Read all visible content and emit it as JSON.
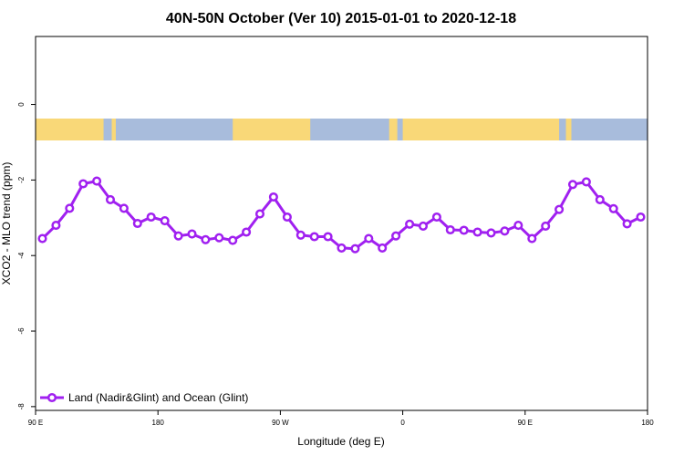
{
  "chart_data": {
    "type": "line",
    "title": "40N-50N October (Ver 10)   2015-01-01 to 2020-12-18",
    "xlabel": "Longitude (deg E)",
    "ylabel": "XCO2 - MLO trend (ppm)",
    "xlim": [
      90,
      540
    ],
    "ylim": [
      -8.1,
      1.8
    ],
    "x_ticks": [
      {
        "value": 90,
        "label": "90 E"
      },
      {
        "value": 180,
        "label": "180"
      },
      {
        "value": 270,
        "label": "90 W"
      },
      {
        "value": 360,
        "label": "0"
      },
      {
        "value": 450,
        "label": "90 E"
      },
      {
        "value": 540,
        "label": "180"
      }
    ],
    "y_ticks": [
      {
        "value": 0,
        "label": "0"
      },
      {
        "value": -2,
        "label": "-2"
      },
      {
        "value": -4,
        "label": "-4"
      },
      {
        "value": -6,
        "label": "-6"
      },
      {
        "value": -8,
        "label": "-8"
      }
    ],
    "grid": false,
    "legend_position": "bottom-left",
    "series": [
      {
        "name": "Land (Nadir&Glint) and Ocean (Glint)",
        "color": "#a020f0",
        "marker": "open-circle",
        "x": [
          95,
          105,
          115,
          125,
          135,
          145,
          155,
          165,
          175,
          185,
          195,
          205,
          215,
          225,
          235,
          245,
          255,
          265,
          275,
          285,
          295,
          305,
          315,
          325,
          335,
          345,
          355,
          365,
          375,
          385,
          395,
          405,
          415,
          425,
          435,
          445,
          455,
          465,
          475,
          485,
          495,
          505,
          515,
          525,
          535
        ],
        "y": [
          -3.55,
          -3.2,
          -2.75,
          -2.1,
          -2.03,
          -2.52,
          -2.75,
          -3.15,
          -2.98,
          -3.08,
          -3.48,
          -3.43,
          -3.58,
          -3.53,
          -3.6,
          -3.38,
          -2.9,
          -2.45,
          -2.98,
          -3.46,
          -3.5,
          -3.5,
          -3.8,
          -3.82,
          -3.55,
          -3.8,
          -3.48,
          -3.17,
          -3.22,
          -2.98,
          -3.32,
          -3.33,
          -3.38,
          -3.4,
          -3.35,
          -3.2,
          -3.55,
          -3.22,
          -2.78,
          -2.12,
          -2.05,
          -2.52,
          -2.76,
          -3.16,
          -2.98
        ]
      }
    ]
  },
  "map_strip": {
    "land_color": "#f9d878",
    "ocean_color": "#a8bcdc"
  }
}
